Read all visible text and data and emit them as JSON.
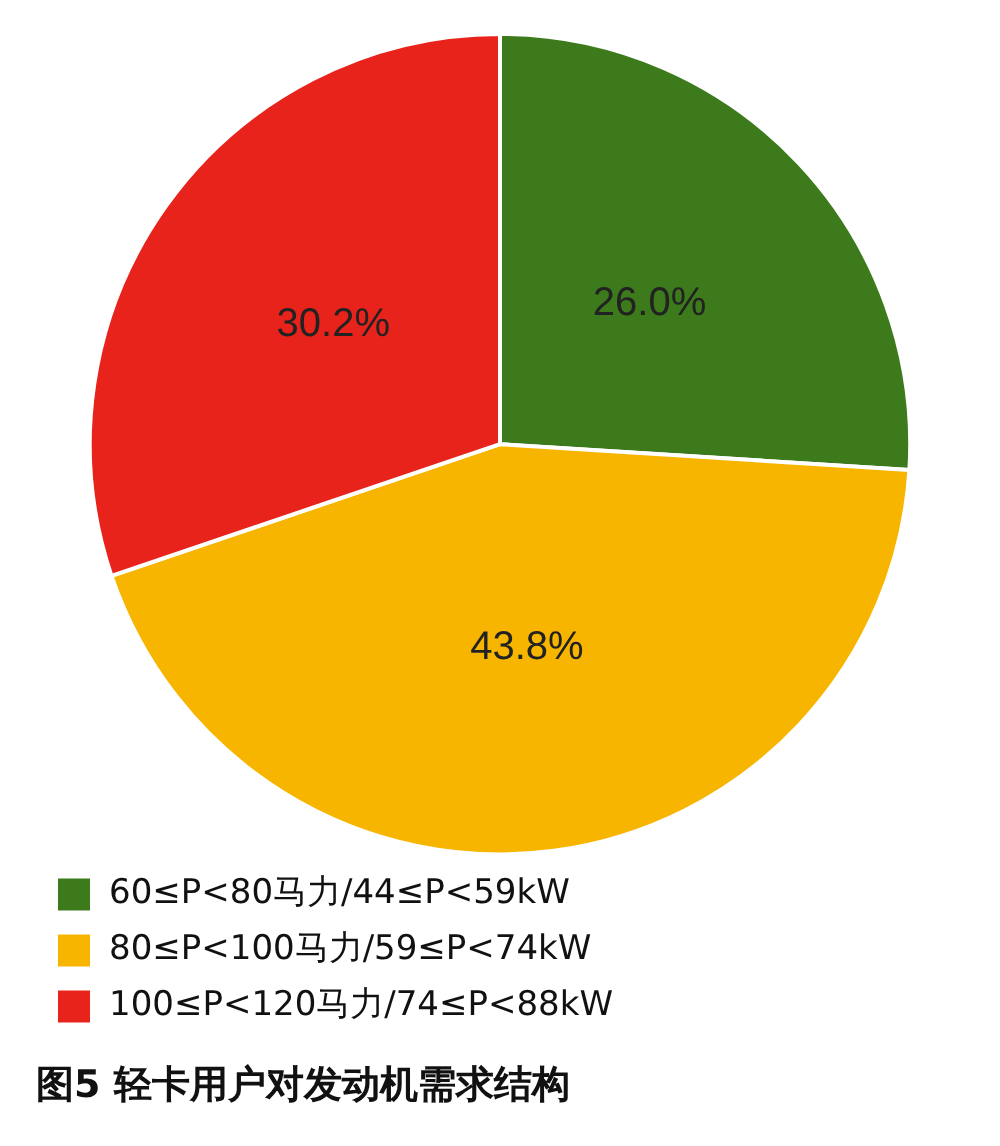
{
  "chart_data": {
    "type": "pie",
    "title": "图5 轻卡用户对发动机需求结构",
    "categories": [
      "60≤P<80马力/44≤P<59kW",
      "80≤P<100马力/59≤P<74kW",
      "100≤P<120马力/74≤P<88kW"
    ],
    "values": [
      26.0,
      43.8,
      30.2
    ],
    "colors": [
      "#3c7a1c",
      "#f7b500",
      "#e8231b"
    ],
    "value_labels": [
      "26.0%",
      "43.8%",
      "30.2%"
    ],
    "legend": "bottom"
  }
}
